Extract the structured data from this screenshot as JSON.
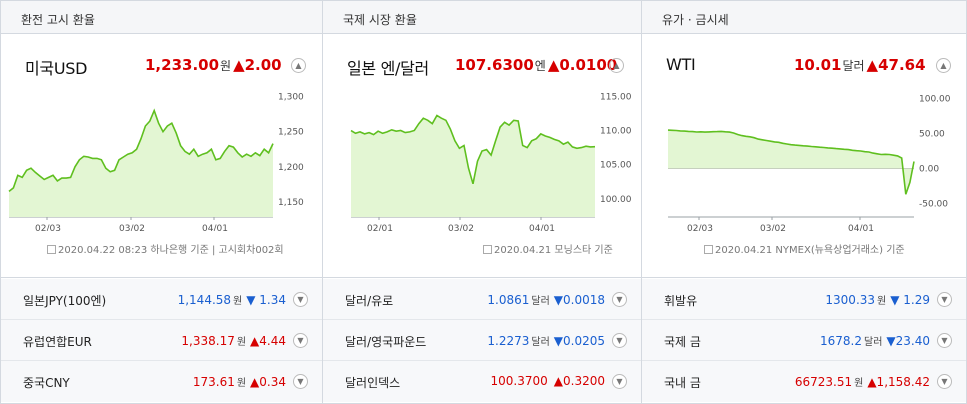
{
  "panels": [
    {
      "header": "환전 고시 환율",
      "name": "미국USD",
      "price": "1,233.00",
      "unit": "원",
      "change": "▲2.00",
      "source": "2020.04.22 08:23 하나은행 기준 | 고시회차002회",
      "rows": [
        {
          "name": "일본JPY(100엔)",
          "value": "1,144.58",
          "unit": "원",
          "change": "▼ 1.34",
          "dir": "dn"
        },
        {
          "name": "유럽연합EUR",
          "value": "1,338.17",
          "unit": "원",
          "change": "▲4.44",
          "dir": "up"
        },
        {
          "name": "중국CNY",
          "value": "173.61",
          "unit": "원",
          "change": "▲0.34",
          "dir": "up"
        }
      ]
    },
    {
      "header": "국제 시장 환율",
      "name": "일본 엔/달러",
      "price": "107.6300",
      "unit": "엔",
      "change": "▲0.0100",
      "source": "2020.04.21 모닝스타 기준",
      "rows": [
        {
          "name": "달러/유로",
          "value": "1.0861",
          "unit": "달러",
          "change": "▼0.0018",
          "dir": "dn"
        },
        {
          "name": "달러/영국파운드",
          "value": "1.2273",
          "unit": "달러",
          "change": "▼0.0205",
          "dir": "dn"
        },
        {
          "name": "달러인덱스",
          "value": "100.3700",
          "unit": "",
          "change": "▲0.3200",
          "dir": "up"
        }
      ]
    },
    {
      "header": "유가 · 금시세",
      "name": "WTI",
      "price": "10.01",
      "unit": "달러",
      "change": "▲47.64",
      "source": "2020.04.21 NYMEX(뉴욕상업거래소) 기준",
      "rows": [
        {
          "name": "휘발유",
          "value": "1300.33",
          "unit": "원",
          "change": "▼ 1.29",
          "dir": "dn"
        },
        {
          "name": "국제 금",
          "value": "1678.2",
          "unit": "달러",
          "change": "▼23.40",
          "dir": "dn"
        },
        {
          "name": "국내 금",
          "value": "66723.51",
          "unit": "원",
          "change": "▲1,158.42",
          "dir": "up"
        }
      ]
    }
  ],
  "chart_data": [
    {
      "type": "area",
      "x_ticks": [
        "02/03",
        "03/02",
        "04/01"
      ],
      "y_ticks": [
        "1,300",
        "1,250",
        "1,200",
        "1,150"
      ],
      "ylim": [
        1140,
        1305
      ],
      "values": [
        1165,
        1170,
        1188,
        1185,
        1195,
        1198,
        1192,
        1187,
        1182,
        1185,
        1188,
        1180,
        1184,
        1184,
        1185,
        1200,
        1210,
        1215,
        1214,
        1212,
        1212,
        1210,
        1198,
        1193,
        1195,
        1210,
        1214,
        1218,
        1220,
        1225,
        1240,
        1258,
        1265,
        1280,
        1262,
        1250,
        1258,
        1262,
        1248,
        1230,
        1222,
        1218,
        1225,
        1215,
        1218,
        1220,
        1225,
        1210,
        1212,
        1222,
        1230,
        1228,
        1220,
        1214,
        1218,
        1215,
        1220,
        1216,
        1225,
        1220,
        1233
      ],
      "line_color": "#5fbf1f",
      "fill_color": "#e3f6d3"
    },
    {
      "type": "area",
      "x_ticks": [
        "02/01",
        "03/02",
        "04/01"
      ],
      "y_ticks": [
        "115.00",
        "110.00",
        "105.00",
        "100.00"
      ],
      "ylim": [
        98.5,
        115.5
      ],
      "values": [
        110,
        109.6,
        109.8,
        109.5,
        109.7,
        109.4,
        109.9,
        109.6,
        109.8,
        110.1,
        109.9,
        110,
        109.7,
        109.8,
        110,
        111,
        111.8,
        111.5,
        111,
        112.2,
        111.8,
        111.5,
        110.2,
        108.5,
        107.4,
        107.8,
        104.5,
        102.2,
        105.5,
        107,
        107.2,
        106.4,
        108.5,
        110.5,
        111.2,
        110.8,
        111.5,
        111.4,
        107.8,
        107.5,
        108.5,
        108.8,
        109.5,
        109.2,
        109,
        108.7,
        108.5,
        108,
        108.3,
        107.6,
        107.4,
        107.5,
        107.7,
        107.6,
        107.63
      ],
      "line_color": "#5fbf1f",
      "fill_color": "#e3f6d3"
    },
    {
      "type": "area",
      "x_ticks": [
        "02/03",
        "03/02",
        "04/01"
      ],
      "y_ticks": [
        "100.00",
        "50.00",
        "0.00",
        "-50.00"
      ],
      "ylim": [
        -58,
        108
      ],
      "values": [
        55,
        54.6,
        54.3,
        53.8,
        53.5,
        53,
        52.7,
        52.2,
        52.5,
        52,
        52.3,
        52.6,
        52.8,
        53,
        52.5,
        52,
        50.8,
        48.6,
        47,
        46,
        45.3,
        44,
        42,
        41,
        40,
        39,
        38,
        37.5,
        36,
        35,
        34,
        33.5,
        33,
        32.5,
        32,
        31.5,
        31,
        30.5,
        30,
        29.5,
        29,
        28.5,
        28,
        27.5,
        27,
        26,
        25.5,
        25,
        24,
        23.5,
        22,
        21,
        20,
        20.3,
        20,
        19,
        18,
        15,
        -37,
        -20,
        10
      ],
      "line_color": "#5fbf1f",
      "fill_color": "#e3f6d3"
    }
  ]
}
